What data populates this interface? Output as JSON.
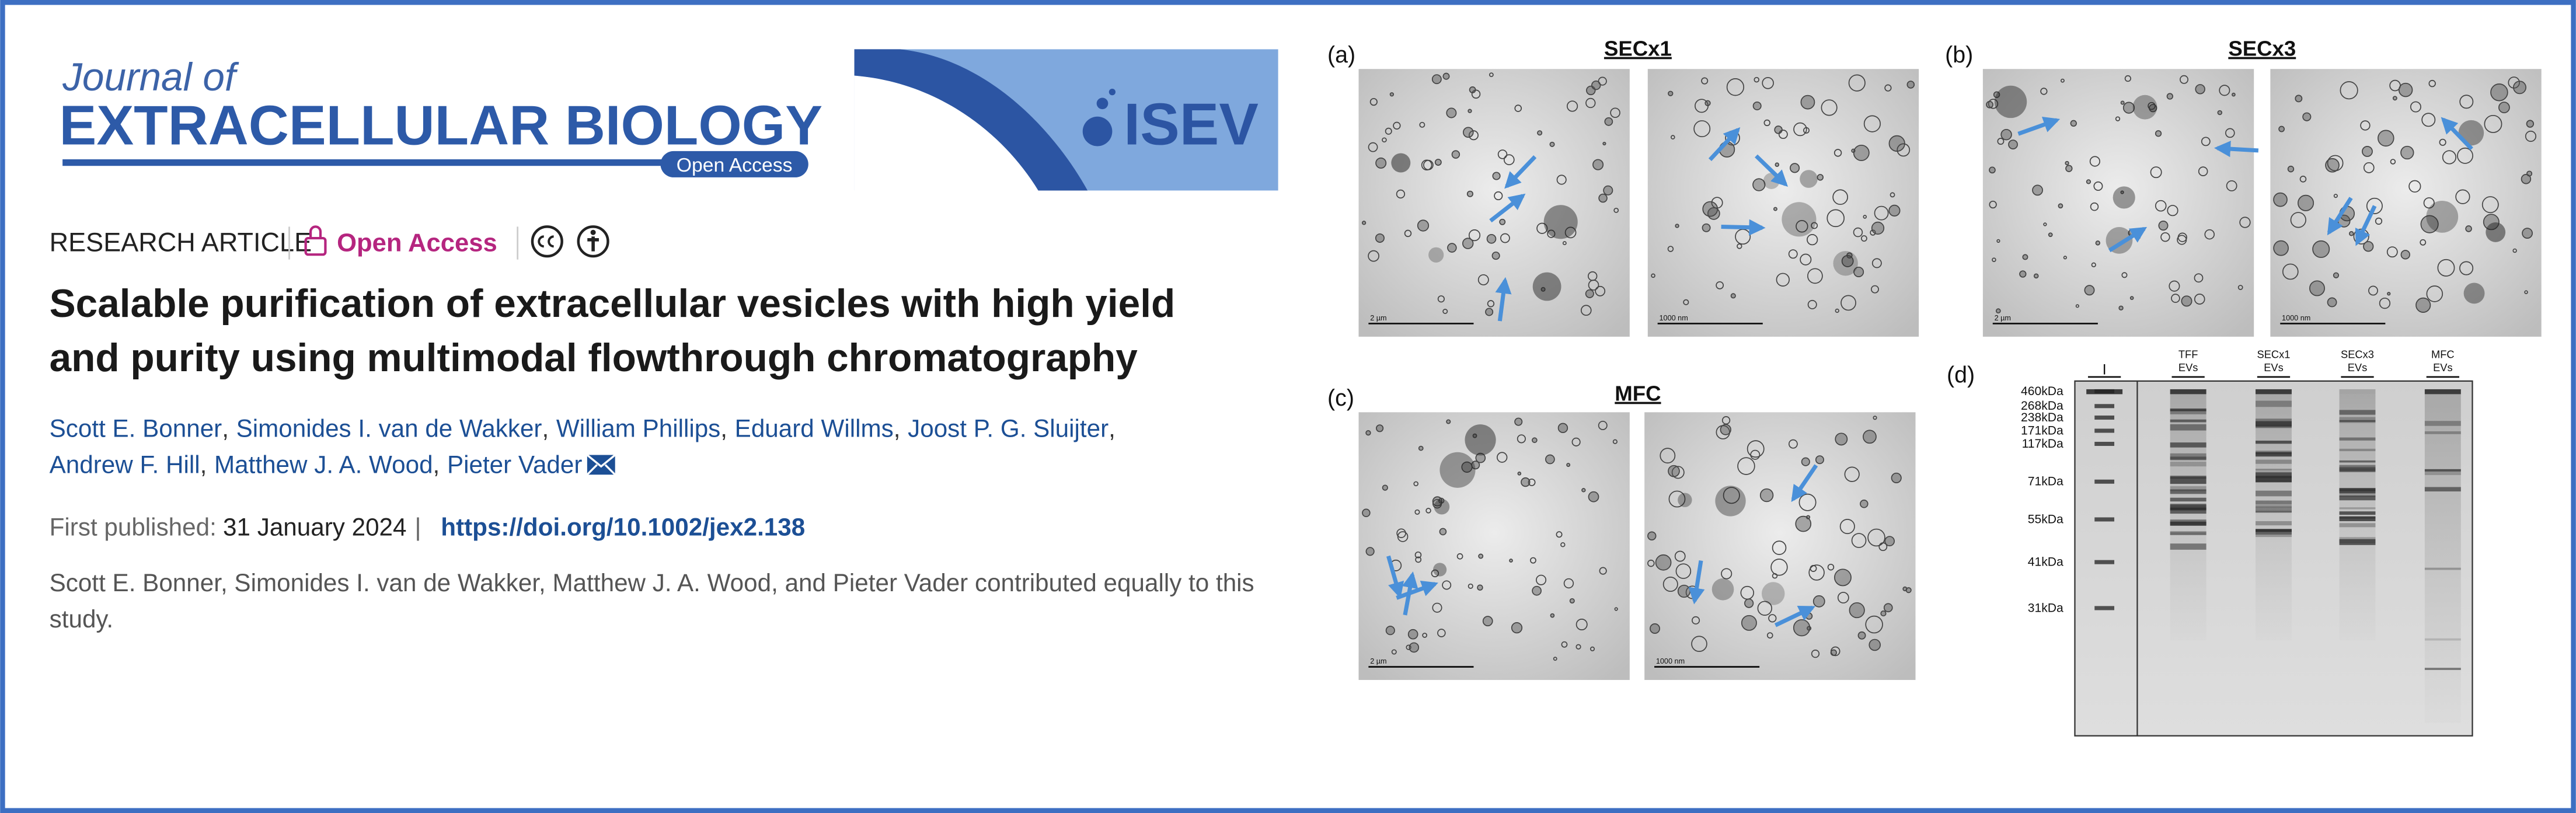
{
  "header": {
    "journal_line1": "Journal of",
    "journal_line2": "EXTRACELLULAR BIOLOGY",
    "journal_badge": "Open Access",
    "society": "ISEV"
  },
  "article": {
    "type": "RESEARCH ARTICLE",
    "access": "Open Access",
    "title_lines": [
      "Scalable purification of extracellular vesicles with high yield",
      "and purity using multimodal flowthrough chromatography"
    ],
    "authors": [
      "Scott E. Bonner",
      "Simonides I. van de Wakker",
      "William Phillips",
      "Eduard Willms",
      "Joost P. G. Sluijter",
      "Andrew F. Hill",
      "Matthew J. A. Wood",
      "Pieter Vader"
    ],
    "author_separator": ",",
    "first_published_label": "First published:",
    "first_published_date": "31 January 2024",
    "separator": "|",
    "doi": "https://doi.org/10.1002/jex2.138",
    "note": "Scott E. Bonner, Simonides I. van de Wakker, Matthew J. A. Wood, and Pieter Vader contributed equally to this study."
  },
  "figure": {
    "panels": [
      {
        "label": "(a)",
        "title": "SECx1",
        "images": [
          {
            "scale_bar": "2 µm"
          },
          {
            "scale_bar": "1000 nm"
          }
        ]
      },
      {
        "label": "(b)",
        "title": "SECx3",
        "images": [
          {
            "scale_bar": "2 µm"
          },
          {
            "scale_bar": "1000 nm"
          }
        ]
      },
      {
        "label": "(c)",
        "title": "MFC",
        "images": [
          {
            "scale_bar": "2 µm"
          },
          {
            "scale_bar": "1000 nm"
          }
        ]
      }
    ],
    "gel": {
      "label": "(d)",
      "lanes": [
        [
          "I"
        ],
        [
          "TFF",
          "EVs"
        ],
        [
          "SECx1",
          "EVs"
        ],
        [
          "SECx3",
          "EVs"
        ],
        [
          "MFC",
          "EVs"
        ]
      ],
      "markers": [
        "460kDa",
        "268kDa",
        "238kDa",
        "171kDa",
        "117kDa",
        "71kDa",
        "55kDa",
        "41kDa",
        "31kDa"
      ]
    }
  }
}
